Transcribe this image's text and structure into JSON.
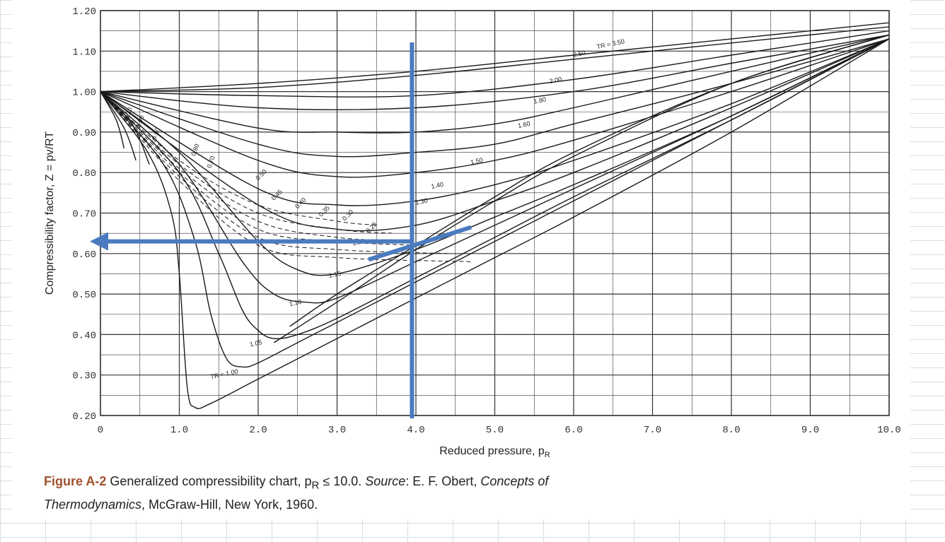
{
  "chart_data": {
    "type": "line",
    "xlabel": "Reduced pressure, p",
    "xlabel_sub": "R",
    "ylabel": "Compressibility factor, Z = pv/RT",
    "xlim": [
      0,
      10
    ],
    "ylim": [
      0.2,
      1.2
    ],
    "x_ticks": [
      "0",
      "1.0",
      "2.0",
      "3.0",
      "4.0",
      "5.0",
      "6.0",
      "7.0",
      "8.0",
      "9.0",
      "10.0"
    ],
    "y_ticks": [
      "0.20",
      "0.30",
      "0.40",
      "0.50",
      "0.60",
      "0.70",
      "0.80",
      "0.90",
      "1.00",
      "1.10",
      "1.20"
    ],
    "grid": true,
    "series": [
      {
        "name": "TR = 3.50",
        "kind": "isotherm",
        "x": [
          0,
          2,
          4,
          6,
          8,
          10
        ],
        "y": [
          1.0,
          1.02,
          1.05,
          1.09,
          1.13,
          1.17
        ]
      },
      {
        "name": "2.50",
        "kind": "isotherm",
        "x": [
          0,
          2,
          4,
          6,
          8,
          10
        ],
        "y": [
          1.0,
          1.01,
          1.04,
          1.08,
          1.12,
          1.16
        ]
      },
      {
        "name": "2.00",
        "kind": "isotherm",
        "x": [
          0,
          2,
          4,
          6,
          8,
          10
        ],
        "y": [
          1.0,
          0.99,
          0.99,
          1.03,
          1.09,
          1.15
        ]
      },
      {
        "name": "1.80",
        "kind": "isotherm",
        "x": [
          0,
          2,
          4,
          6,
          8,
          10
        ],
        "y": [
          1.0,
          0.96,
          0.96,
          1.0,
          1.07,
          1.14
        ]
      },
      {
        "name": "1.60",
        "kind": "isotherm",
        "x": [
          0,
          2,
          3,
          4,
          5,
          6,
          8,
          10
        ],
        "y": [
          1.0,
          0.91,
          0.9,
          0.9,
          0.92,
          0.96,
          1.05,
          1.14
        ]
      },
      {
        "name": "1.50",
        "kind": "isotherm",
        "x": [
          0,
          2,
          3,
          4,
          5,
          6,
          8,
          10
        ],
        "y": [
          1.0,
          0.87,
          0.84,
          0.85,
          0.87,
          0.92,
          1.02,
          1.13
        ]
      },
      {
        "name": "1.40",
        "kind": "isotherm",
        "x": [
          0,
          2,
          3,
          4,
          5,
          6,
          8,
          10
        ],
        "y": [
          1.0,
          0.83,
          0.79,
          0.8,
          0.83,
          0.88,
          1.0,
          1.13
        ]
      },
      {
        "name": "1.30",
        "kind": "isotherm",
        "x": [
          0,
          2,
          3,
          4,
          5,
          6,
          8,
          10
        ],
        "y": [
          1.0,
          0.76,
          0.72,
          0.73,
          0.77,
          0.83,
          0.97,
          1.13
        ]
      },
      {
        "name": "1.25",
        "kind": "isotherm",
        "x": [
          0,
          2,
          3,
          4,
          5,
          6,
          8,
          10
        ],
        "y": [
          1.0,
          0.72,
          0.66,
          0.67,
          0.73,
          0.8,
          0.96,
          1.13
        ]
      },
      {
        "name": "1.20",
        "kind": "isotherm",
        "x": [
          0,
          1,
          2,
          2.5,
          3,
          4,
          5,
          6,
          8,
          10
        ],
        "y": [
          1.0,
          0.85,
          0.63,
          0.56,
          0.55,
          0.61,
          0.69,
          0.77,
          0.94,
          1.13
        ]
      },
      {
        "name": "1.15",
        "kind": "isotherm",
        "x": [
          0,
          1,
          1.8,
          2.2,
          2.6,
          3,
          4,
          5,
          6,
          8,
          10
        ],
        "y": [
          1.0,
          0.82,
          0.58,
          0.5,
          0.48,
          0.49,
          0.58,
          0.67,
          0.76,
          0.94,
          1.13
        ]
      },
      {
        "name": "1.10",
        "kind": "isotherm",
        "x": [
          0,
          1,
          1.5,
          1.8,
          2.0,
          2.2,
          2.5,
          3,
          4,
          5,
          6,
          8,
          10
        ],
        "y": [
          1.0,
          0.8,
          0.6,
          0.46,
          0.41,
          0.39,
          0.4,
          0.44,
          0.54,
          0.64,
          0.74,
          0.93,
          1.13
        ]
      },
      {
        "name": "1.05",
        "kind": "isotherm",
        "x": [
          0,
          0.8,
          1.2,
          1.4,
          1.6,
          1.8,
          2.0,
          2.5,
          3,
          4,
          5,
          6,
          8,
          10
        ],
        "y": [
          1.0,
          0.82,
          0.63,
          0.45,
          0.34,
          0.32,
          0.33,
          0.38,
          0.43,
          0.53,
          0.63,
          0.73,
          0.93,
          1.13
        ]
      },
      {
        "name": "TR = 1.00",
        "kind": "isotherm",
        "x": [
          0,
          0.6,
          0.9,
          1.0,
          1.1,
          1.2,
          1.4,
          2.0,
          3,
          4,
          5,
          6,
          8,
          10
        ],
        "y": [
          1.0,
          0.85,
          0.7,
          0.55,
          0.27,
          0.22,
          0.23,
          0.29,
          0.39,
          0.49,
          0.59,
          0.69,
          0.9,
          1.13
        ]
      },
      {
        "name": "0.90",
        "kind": "isotherm-vapor",
        "x": [
          0,
          0.4,
          0.62
        ],
        "y": [
          1.0,
          0.92,
          0.82
        ]
      },
      {
        "name": "0.80",
        "kind": "isotherm-vapor",
        "x": [
          0,
          0.3,
          0.45
        ],
        "y": [
          1.0,
          0.91,
          0.83
        ]
      },
      {
        "name": "0.70",
        "kind": "isotherm-vapor",
        "x": [
          0,
          0.2,
          0.3
        ],
        "y": [
          1.0,
          0.93,
          0.86
        ]
      },
      {
        "name": "0.80",
        "kind": "isotherm-liquid",
        "x": [
          2.4,
          3,
          4,
          5,
          6,
          8,
          10
        ],
        "y": [
          0.42,
          0.5,
          0.62,
          0.74,
          0.85,
          1.02,
          1.14
        ]
      },
      {
        "name": "0.70",
        "kind": "isotherm-liquid",
        "x": [
          2.2,
          3,
          4,
          5,
          6,
          8,
          10
        ],
        "y": [
          0.38,
          0.48,
          0.61,
          0.73,
          0.84,
          1.02,
          1.14
        ]
      },
      {
        "name": "vR = 0.50",
        "kind": "isochore",
        "x": [
          0,
          1,
          2,
          3,
          3.5
        ],
        "y": [
          1.0,
          0.83,
          0.72,
          0.68,
          0.67
        ]
      },
      {
        "name": "0.45",
        "kind": "isochore",
        "x": [
          0,
          1,
          2,
          3,
          3.7
        ],
        "y": [
          1.0,
          0.82,
          0.7,
          0.66,
          0.65
        ]
      },
      {
        "name": "0.40",
        "kind": "isochore",
        "x": [
          0,
          1,
          2,
          3,
          3.9
        ],
        "y": [
          1.0,
          0.81,
          0.68,
          0.64,
          0.63
        ]
      },
      {
        "name": "0.35",
        "kind": "isochore",
        "x": [
          0,
          1,
          2,
          3,
          4.1
        ],
        "y": [
          1.0,
          0.8,
          0.66,
          0.63,
          0.62
        ]
      },
      {
        "name": "0.30",
        "kind": "isochore",
        "x": [
          0,
          1,
          2,
          3,
          4.4
        ],
        "y": [
          1.0,
          0.79,
          0.64,
          0.61,
          0.6
        ]
      },
      {
        "name": "0.25",
        "kind": "isochore",
        "x": [
          0,
          1,
          2,
          3,
          4.7
        ],
        "y": [
          1.0,
          0.78,
          0.62,
          0.59,
          0.58
        ]
      }
    ],
    "isotherm_labels": [
      "TR = 3.50",
      "2.50",
      "2.00",
      "1.80",
      "1.60",
      "1.50",
      "1.40",
      "1.30",
      "1.20",
      "1.15",
      "1.10",
      "1.05",
      "TR = 1.00"
    ],
    "isochore_labels": [
      "0.50",
      "0.45",
      "0.40",
      "0.35",
      "0.30",
      "0.25"
    ],
    "left_curve_labels": [
      "1.20",
      "1.00",
      "0.90",
      "0.80",
      "0.70"
    ],
    "annotations": {
      "vertical_line_x": 3.95,
      "horizontal_arrow_y": 0.63,
      "horizontal_arrow_from_x": 3.95,
      "horizontal_arrow_to_x": 0,
      "diagonal_marker": {
        "x": [
          3.4,
          4.7
        ],
        "y": [
          0.585,
          0.665
        ]
      },
      "color": "#4a7bbf"
    }
  },
  "caption": {
    "figure_no": "Figure A-2",
    "text_1": "Generalized compressibility chart, p",
    "sub": "R",
    "text_2": " ≤ 10.0. ",
    "source_label": "Source",
    "text_3": ": E. F. Obert, ",
    "book_1": "Concepts of",
    "book_2": "Thermodynamics",
    "text_4": ", McGraw-Hill, New York, 1960."
  }
}
